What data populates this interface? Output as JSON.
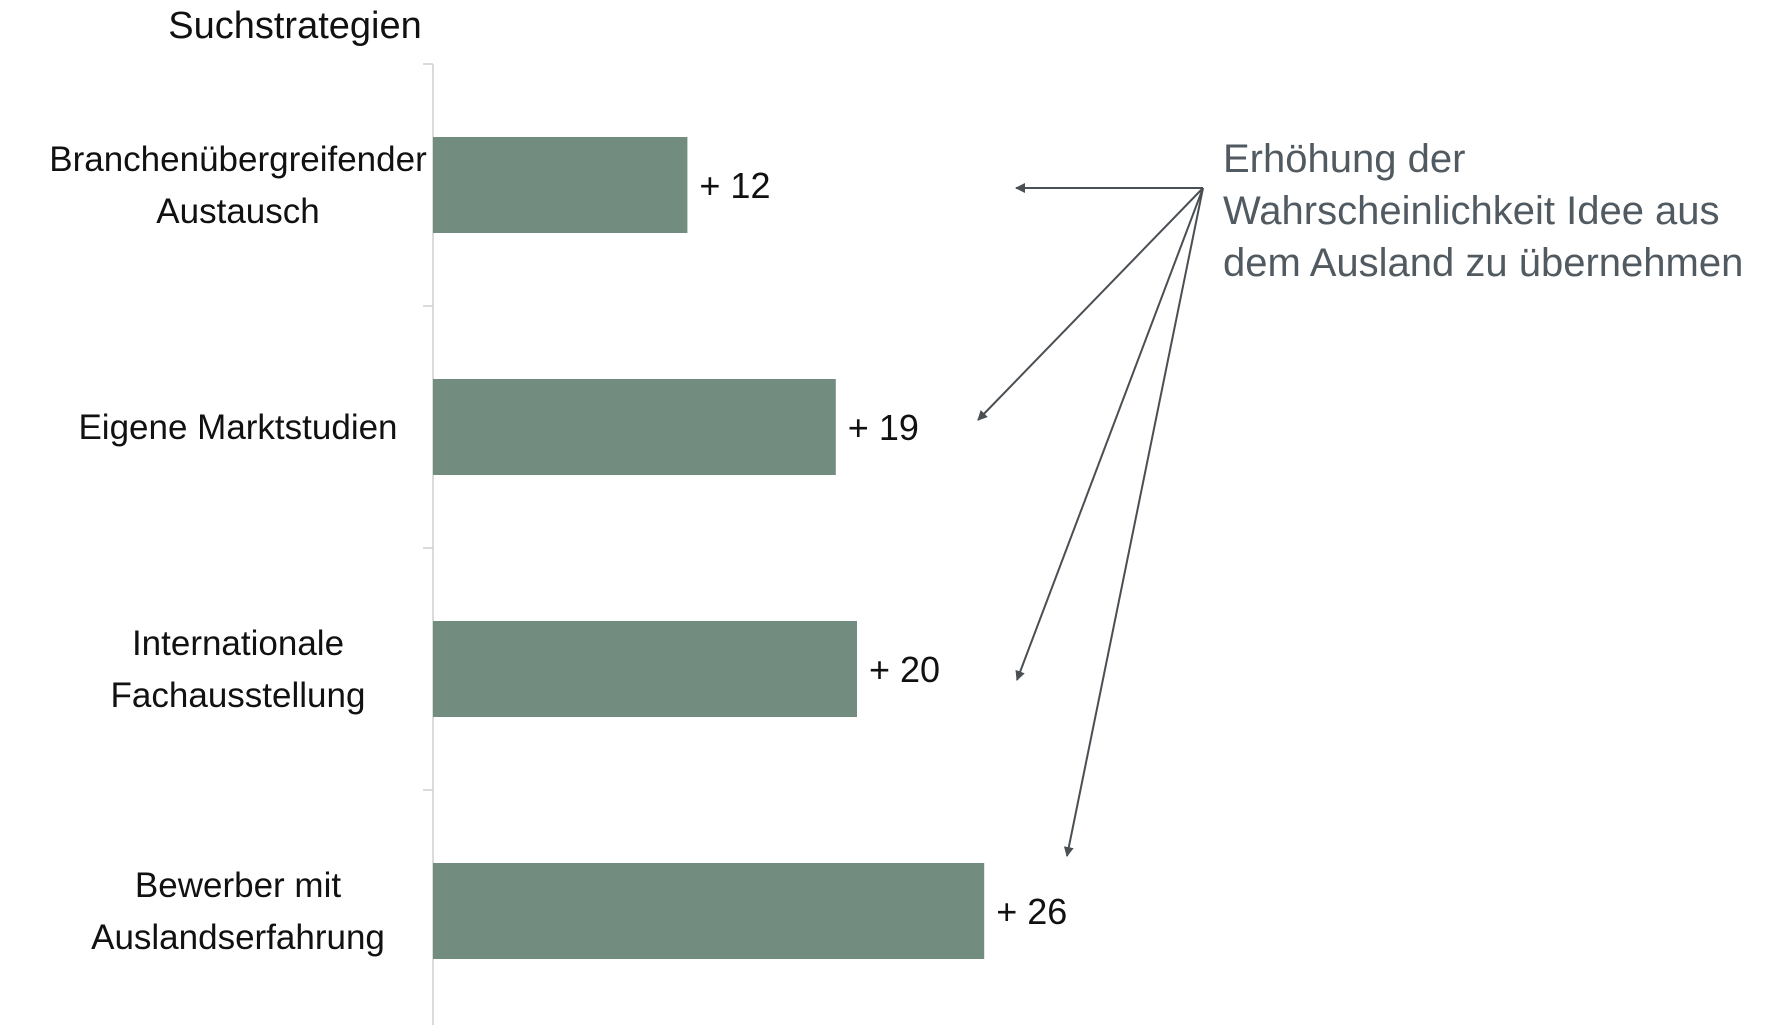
{
  "chart_data": {
    "type": "bar",
    "orientation": "horizontal",
    "ylabel": "Suchstrategien",
    "categories": [
      [
        "Branchenübergreifender",
        "Austausch"
      ],
      [
        "Eigene Marktstudien"
      ],
      [
        "Internationale",
        "Fachausstellung"
      ],
      [
        "Bewerber mit",
        "Auslandserfahrung"
      ]
    ],
    "values": [
      12,
      19,
      20,
      26
    ],
    "value_labels": [
      "+ 12",
      "+ 19",
      "+ 20",
      "+ 26"
    ],
    "xlim": [
      0,
      30
    ],
    "grid": false,
    "bar_color": "#728c80",
    "annotation": {
      "lines": [
        "Erhöhung der",
        "Wahrscheinlichkeit Idee aus",
        "dem Ausland zu übernehmen"
      ],
      "color": "#515a61",
      "arrow_count": 4
    }
  }
}
